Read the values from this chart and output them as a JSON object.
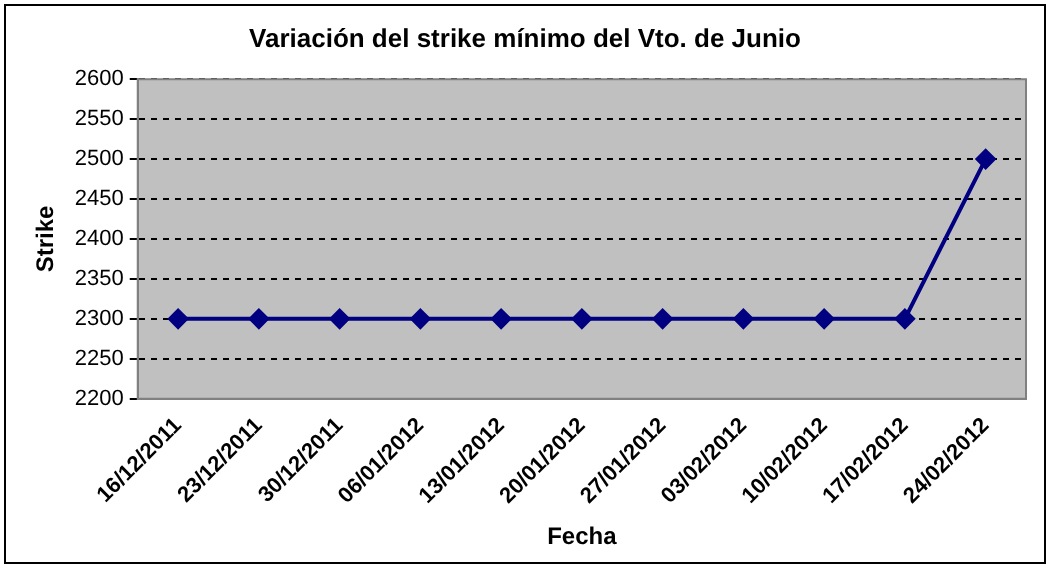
{
  "chart_data": {
    "type": "line",
    "title": "Variación del strike mínimo del Vto. de Junio",
    "xlabel": "Fecha",
    "ylabel": "Strike",
    "categories": [
      "16/12/2011",
      "23/12/2011",
      "30/12/2011",
      "06/01/2012",
      "13/01/2012",
      "20/01/2012",
      "27/01/2012",
      "03/02/2012",
      "10/02/2012",
      "17/02/2012",
      "24/02/2012"
    ],
    "series": [
      {
        "color": "#000080",
        "values": [
          2300,
          2300,
          2300,
          2300,
          2300,
          2300,
          2300,
          2300,
          2300,
          2300,
          2500
        ]
      }
    ],
    "ylim": [
      2200,
      2600
    ],
    "yticks": [
      2200,
      2250,
      2300,
      2350,
      2400,
      2450,
      2500,
      2550,
      2600
    ],
    "grid": "y",
    "legend": false,
    "marker": "diamond",
    "line_style": "solid"
  }
}
